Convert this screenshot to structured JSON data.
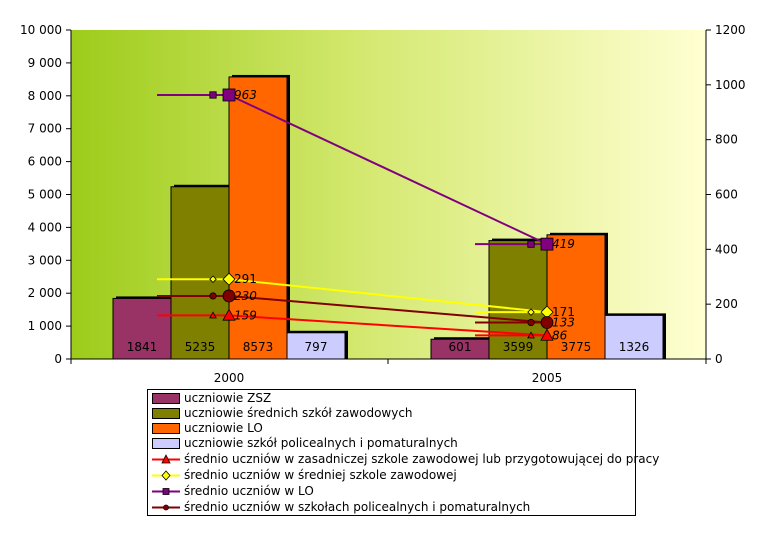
{
  "chart_data": {
    "type": "bar",
    "categories": [
      "2000",
      "2005"
    ],
    "y_left": {
      "ticks": [
        "0",
        "1 000",
        "2 000",
        "3 000",
        "4 000",
        "5 000",
        "6 000",
        "7 000",
        "8 000",
        "9 000",
        "10 000"
      ],
      "ylim": [
        0,
        10000
      ]
    },
    "y_right": {
      "ticks": [
        "0",
        "200",
        "400",
        "600",
        "800",
        "1000",
        "1200"
      ],
      "ylim": [
        0,
        1200
      ]
    },
    "grid": false,
    "legend_position": "bottom",
    "bar_series": [
      {
        "name": "uczniowie ZSZ",
        "color": "#993366",
        "values": [
          1841,
          601
        ],
        "labels": [
          "1841",
          "601"
        ]
      },
      {
        "name": "uczniowie średnich szkół zawodowych",
        "color": "#808000",
        "values": [
          5235,
          3599
        ],
        "labels": [
          "5235",
          "3599"
        ]
      },
      {
        "name": "uczniowie LO",
        "color": "#ff6600",
        "values": [
          8573,
          3775
        ],
        "labels": [
          "8573",
          "3775"
        ]
      },
      {
        "name": "uczniowie szkół policealnych i pomaturalnych",
        "color": "#ccccff",
        "values": [
          797,
          1326
        ],
        "labels": [
          "797",
          "1326"
        ]
      }
    ],
    "line_series": [
      {
        "name": "średnio uczniów w zasadniczej szkole zawodowej lub przygotowującej do pracy",
        "color": "#ff0000",
        "marker": "triangle",
        "values": [
          159,
          86
        ],
        "labels": [
          "159",
          "86"
        ],
        "italic": true
      },
      {
        "name": "średnio uczniów w średniej szkole zawodowej",
        "color": "#ffff00",
        "marker": "diamond",
        "values": [
          291,
          171
        ],
        "labels": [
          "291",
          "171"
        ],
        "italic": false
      },
      {
        "name": "średnio uczniów w LO",
        "color": "#800080",
        "marker": "square",
        "values": [
          963,
          419
        ],
        "labels": [
          "963",
          "419"
        ],
        "italic": true
      },
      {
        "name": "średnio uczniów w szkołach policealnych i pomaturalnych",
        "color": "#800000",
        "marker": "circle",
        "values": [
          230,
          133
        ],
        "labels": [
          "230",
          "133"
        ],
        "italic": true
      }
    ]
  }
}
